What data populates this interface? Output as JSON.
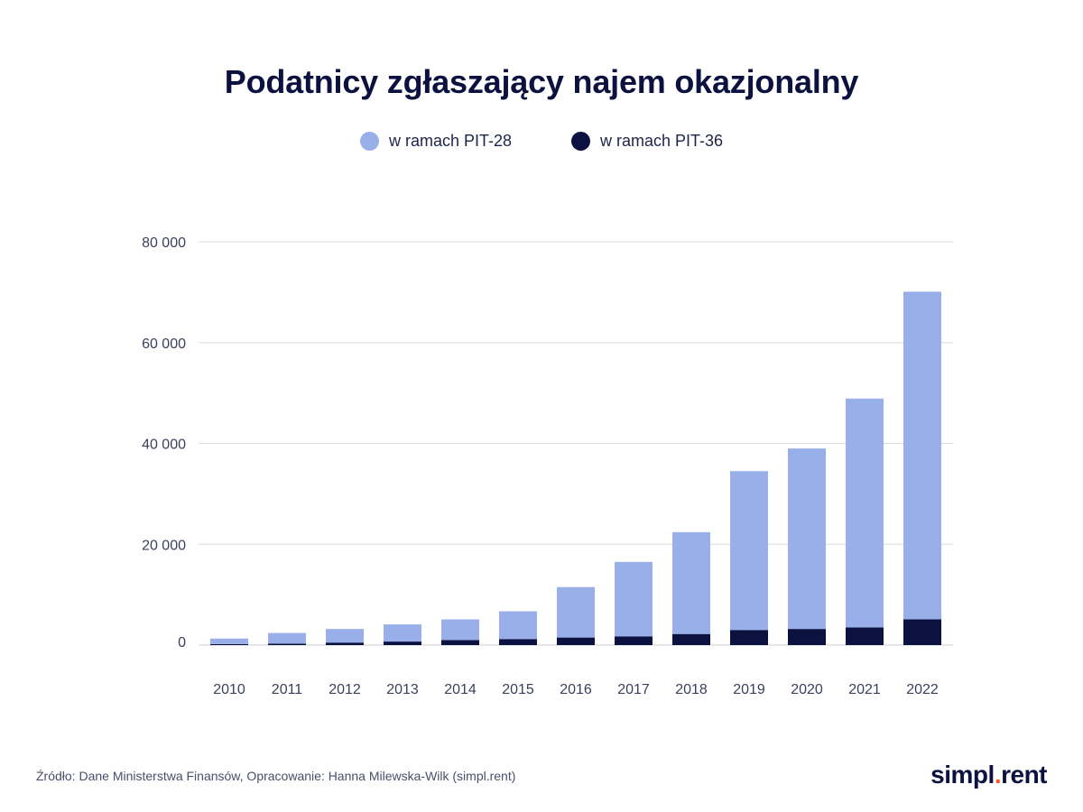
{
  "colors": {
    "pit28": "#98afea",
    "pit36": "#0c1240",
    "grid": "#d9dbe3",
    "brand_dot": "#ff5a2c"
  },
  "footer": {
    "source": "Źródło: Dane Ministerstwa Finansów, Opracowanie: Hanna Milewska-Wilk (simpl.rent)",
    "brand_left": "simpl",
    "brand_dot": ".",
    "brand_right": "rent"
  },
  "chart_data": {
    "type": "bar",
    "stacked": true,
    "title": "Podatnicy zgłaszający najem okazjonalny",
    "legend_position": "top-center",
    "grid": true,
    "ylim": [
      0,
      80000
    ],
    "yticks": [
      0,
      20000,
      40000,
      60000,
      80000
    ],
    "ytick_labels": [
      "0",
      "20 000",
      "40 000",
      "60 000",
      "80 000"
    ],
    "categories": [
      "2010",
      "2011",
      "2012",
      "2013",
      "2014",
      "2015",
      "2016",
      "2017",
      "2018",
      "2019",
      "2020",
      "2021",
      "2022"
    ],
    "series": [
      {
        "name": "w ramach PIT-36",
        "color": "#0c1240",
        "values": [
          200,
          300,
          500,
          700,
          1000,
          1200,
          1500,
          1700,
          2200,
          3000,
          3200,
          3500,
          5100
        ]
      },
      {
        "name": "w ramach PIT-28",
        "color": "#98afea",
        "values": [
          1100,
          2100,
          2700,
          3400,
          4100,
          5500,
          10000,
          14800,
          20200,
          31500,
          35800,
          45400,
          65000
        ]
      }
    ]
  }
}
